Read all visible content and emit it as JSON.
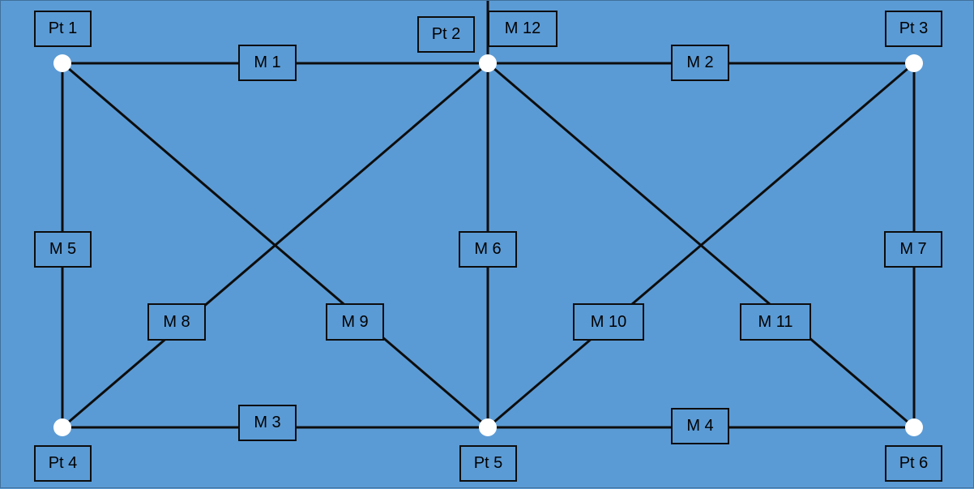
{
  "points": {
    "pt1": "Pt 1",
    "pt2": "Pt 2",
    "pt3": "Pt 3",
    "pt4": "Pt 4",
    "pt5": "Pt 5",
    "pt6": "Pt 6"
  },
  "members": {
    "m1": "M 1",
    "m2": "M 2",
    "m3": "M 3",
    "m4": "M 4",
    "m5": "M 5",
    "m6": "M 6",
    "m7": "M 7",
    "m8": "M 8",
    "m9": "M 9",
    "m10": "M 10",
    "m11": "M 11",
    "m12": "M 12"
  },
  "colors": {
    "background": "#5b9bd5",
    "line": "#0d0d0d",
    "node": "#ffffff"
  }
}
